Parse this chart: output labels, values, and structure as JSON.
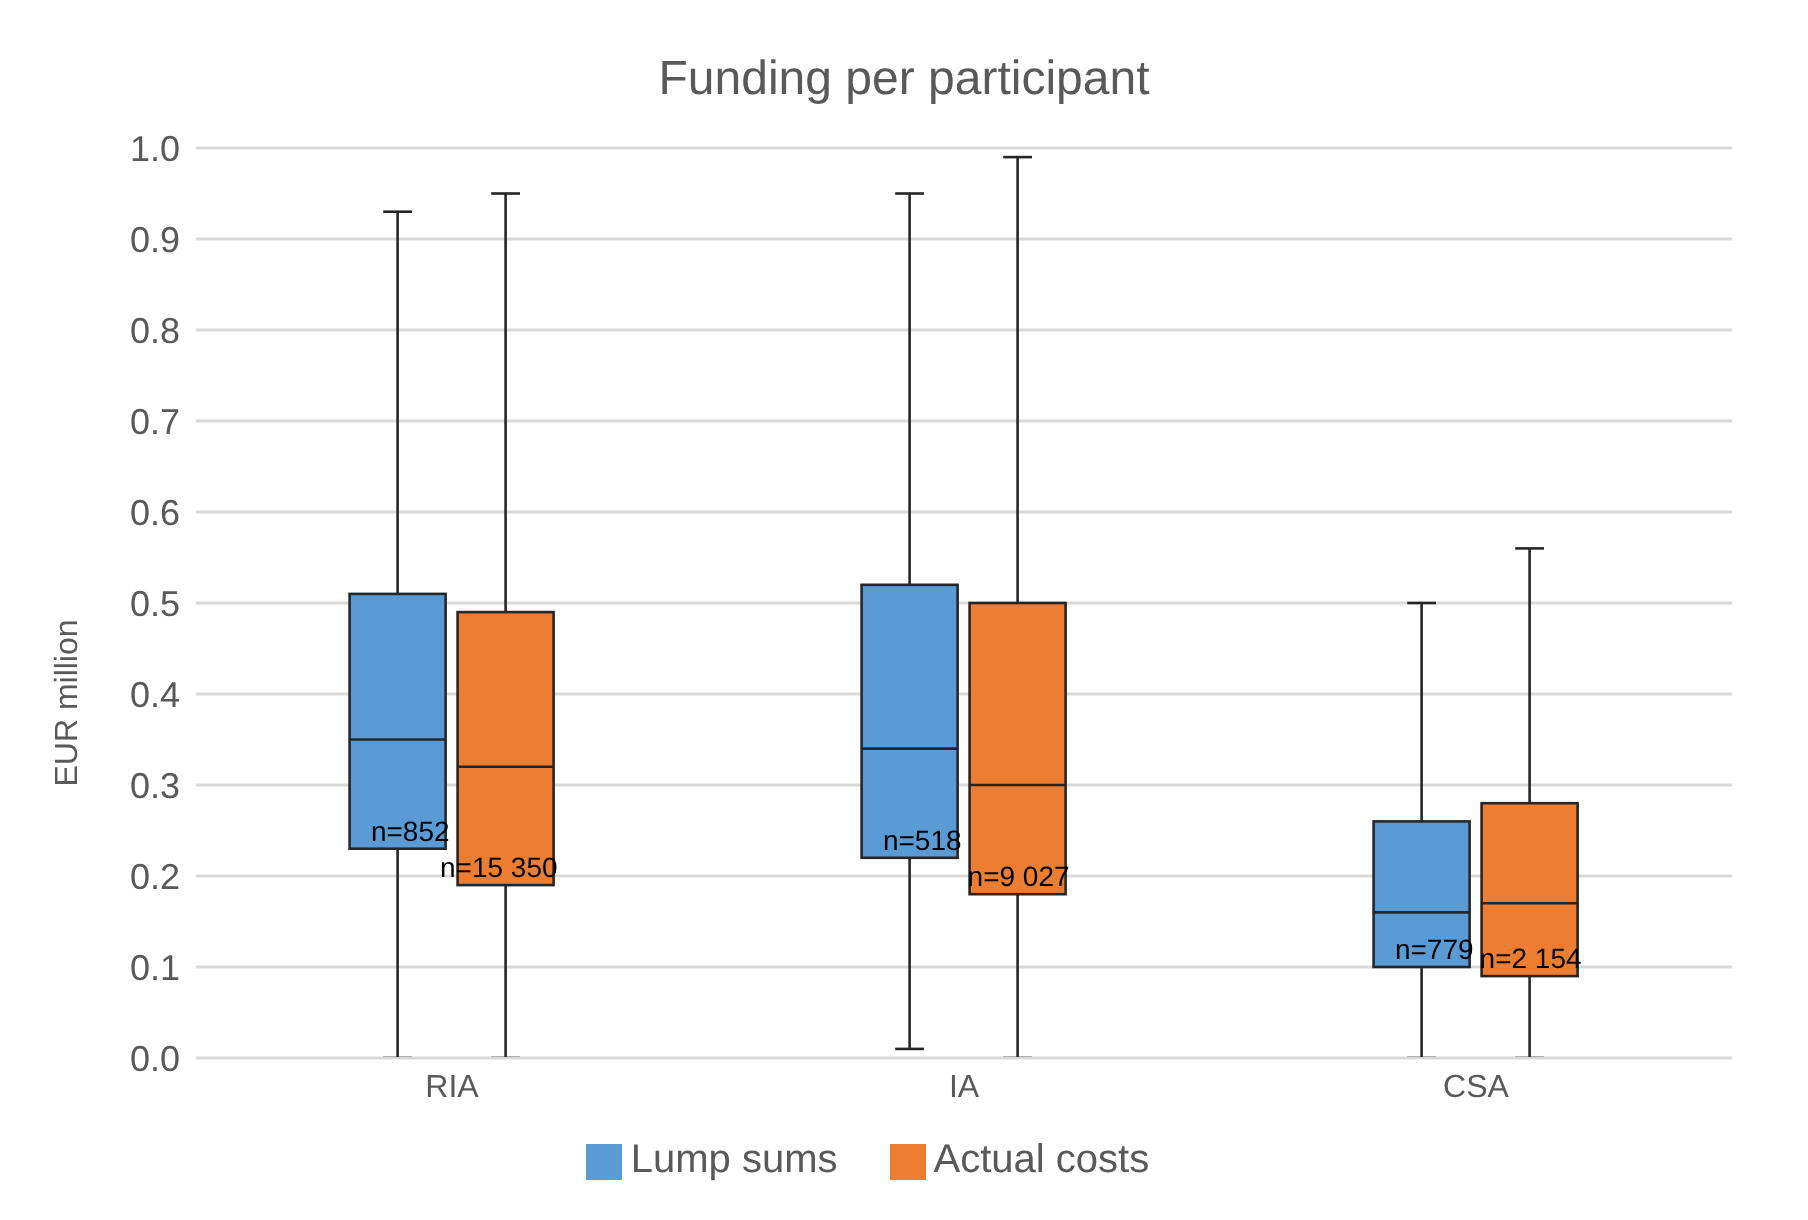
{
  "chart_data": {
    "type": "box",
    "title": "Funding per participant",
    "ylabel": "EUR million",
    "categories": [
      "RIA",
      "IA",
      "CSA"
    ],
    "series": [
      {
        "name": "Lump sums",
        "color": "#5b9bd5",
        "boxes": [
          {
            "low": 0,
            "q1": 0.23,
            "median": 0.35,
            "q3": 0.51,
            "high": 0.93
          },
          {
            "low": 0.01,
            "q1": 0.22,
            "median": 0.34,
            "q3": 0.52,
            "high": 0.95
          },
          {
            "low": 0,
            "q1": 0.1,
            "median": 0.16,
            "q3": 0.26,
            "high": 0.5
          }
        ]
      },
      {
        "name": "Actual costs",
        "color": "#ed7d31",
        "boxes": [
          {
            "low": 0,
            "q1": 0.19,
            "median": 0.32,
            "q3": 0.49,
            "high": 0.95
          },
          {
            "low": 0,
            "q1": 0.18,
            "median": 0.3,
            "q3": 0.5,
            "high": 0.99
          },
          {
            "low": 0,
            "q1": 0.09,
            "median": 0.17,
            "q3": 0.28,
            "high": 0.56
          }
        ]
      }
    ],
    "ylim": [
      0,
      1
    ],
    "yticks": [
      {
        "value": 0,
        "label": "0.0"
      },
      {
        "value": 0.1,
        "label": "0.1"
      },
      {
        "value": 0.2,
        "label": "0.2"
      },
      {
        "value": 0.3,
        "label": "0.3"
      },
      {
        "value": 0.4,
        "label": "0.4"
      },
      {
        "value": 0.5,
        "label": "0.5"
      },
      {
        "value": 0.6,
        "label": "0.6"
      },
      {
        "value": 0.7,
        "label": "0.7"
      },
      {
        "value": 0.8,
        "label": "0.8"
      },
      {
        "value": 0.9,
        "label": "0.9"
      },
      {
        "value": 1,
        "label": "1.0"
      }
    ],
    "grid": "y",
    "legend": "bottom",
    "annotations": [
      {
        "text": "n=852",
        "x": "RIA",
        "y": 0.23
      },
      {
        "text": "n=15 350",
        "x": "RIA",
        "y": 0.19
      },
      {
        "text": "n=518",
        "x": "IA",
        "y": 0.22
      },
      {
        "text": "n=9 027",
        "x": "IA",
        "y": 0.18
      },
      {
        "text": "n=779",
        "x": "CSA",
        "y": 0.1
      },
      {
        "text": "n=2 154",
        "x": "CSA",
        "y": 0.09
      }
    ]
  }
}
